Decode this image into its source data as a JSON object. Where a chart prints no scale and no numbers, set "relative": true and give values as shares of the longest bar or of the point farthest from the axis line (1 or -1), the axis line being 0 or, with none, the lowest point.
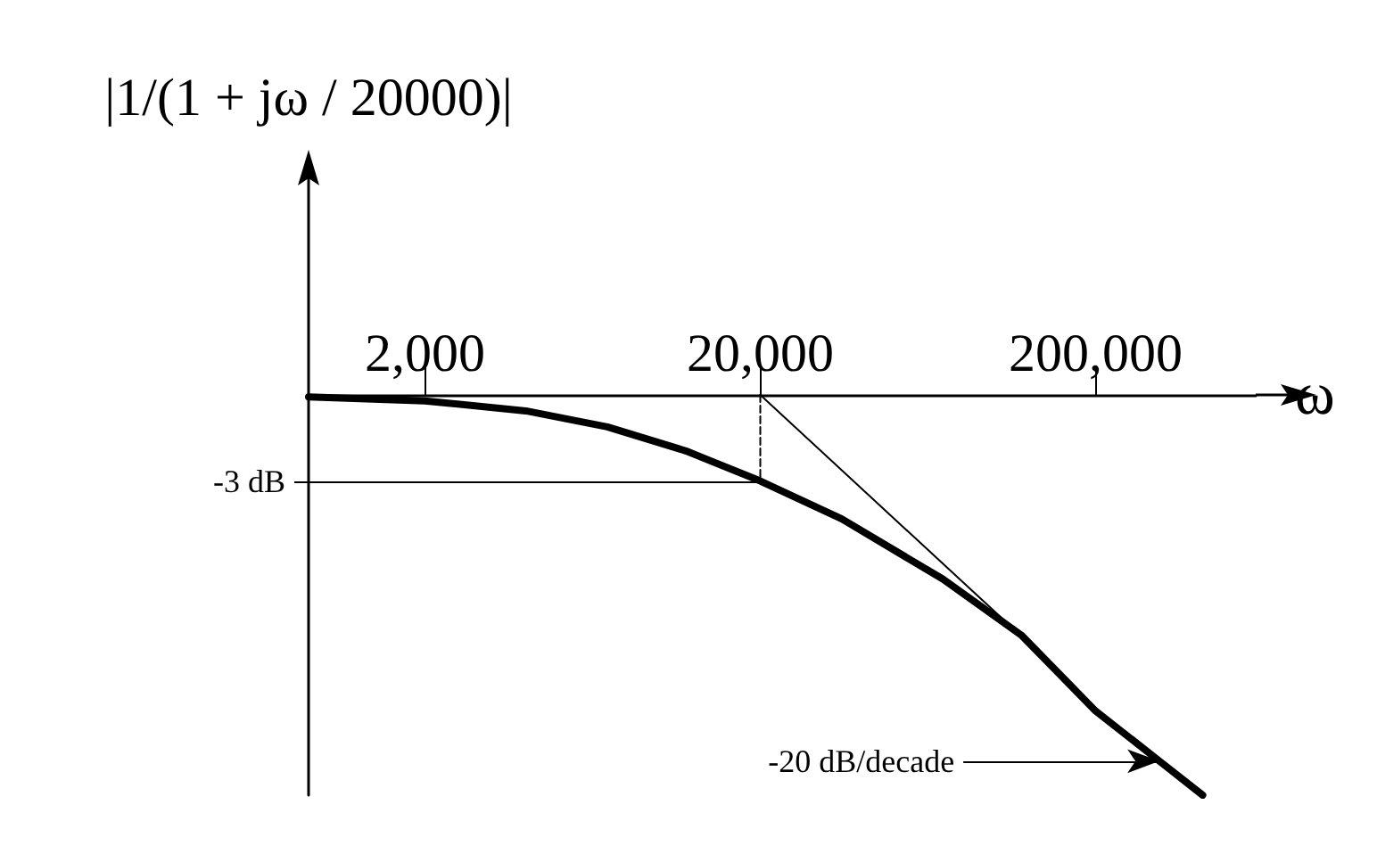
{
  "chart_data": {
    "type": "line",
    "relative": true,
    "ylabel": "|1/(1 + jω / 20000)|",
    "xlabel": "ω",
    "log": "x",
    "xlim": [
      900,
      600000
    ],
    "xticks": [
      {
        "value": 2000,
        "label": "2,000"
      },
      {
        "value": 20000,
        "label": "20,000"
      },
      {
        "value": 200000,
        "label": "200,000"
      }
    ],
    "grid": false,
    "marker": "none",
    "line_style": "solid",
    "series": [
      {
        "color": "#000000",
        "x": [
          900,
          2000,
          4000,
          7000,
          12000,
          20000,
          35000,
          70000,
          120000,
          200000,
          310000,
          417000
        ],
        "values": [
          -0.005,
          -0.015,
          -0.04,
          -0.08,
          -0.14,
          -0.215,
          -0.31,
          -0.46,
          -0.6,
          -0.79,
          -0.915,
          -1
        ]
      },
      {
        "type": "line",
        "color": "#000000",
        "x": [
          20000,
          134000
        ],
        "values": [
          0,
          -0.64
        ]
      },
      {
        "type": "line",
        "color": "#000000",
        "line_style": "dashed",
        "x": [
          20000,
          20000
        ],
        "values": [
          0,
          -0.215
        ]
      }
    ],
    "annotations": [
      {
        "text": "-3 dB",
        "x": 20000,
        "y": -0.215
      },
      {
        "text": "-20 dB/decade",
        "x": 310000,
        "y": -0.915
      }
    ]
  }
}
